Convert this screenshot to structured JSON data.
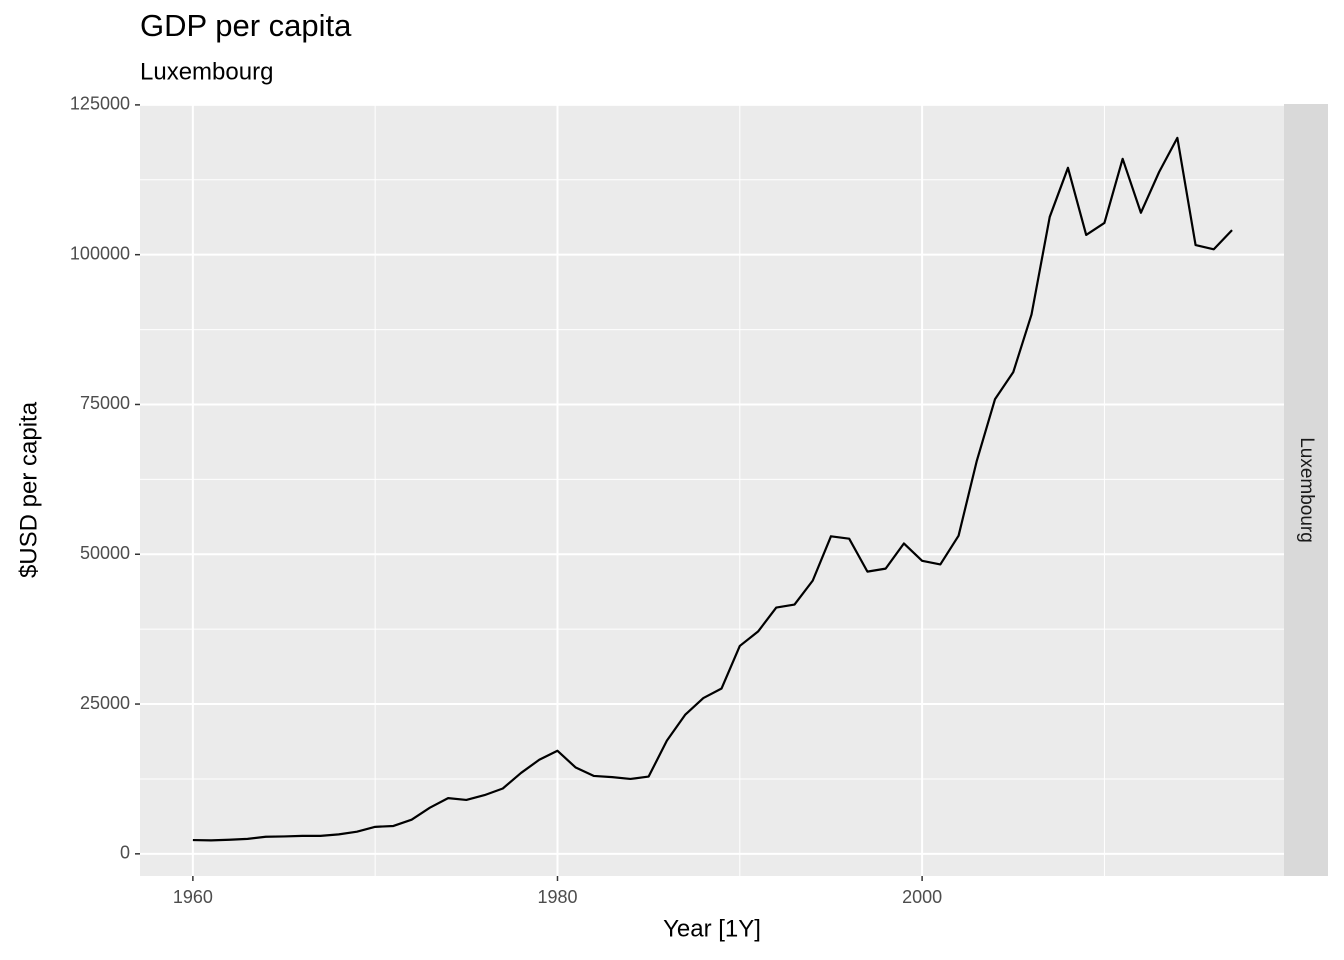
{
  "chart_data": {
    "type": "line",
    "title": "GDP per capita",
    "subtitle": "Luxembourg",
    "xlabel": "Year [1Y]",
    "ylabel": "$USD per capita",
    "facet": "Luxembourg",
    "x": [
      1960,
      1961,
      1962,
      1963,
      1964,
      1965,
      1966,
      1967,
      1968,
      1969,
      1970,
      1971,
      1972,
      1973,
      1974,
      1975,
      1976,
      1977,
      1978,
      1979,
      1980,
      1981,
      1982,
      1983,
      1984,
      1985,
      1986,
      1987,
      1988,
      1989,
      1990,
      1991,
      1992,
      1993,
      1994,
      1995,
      1996,
      1997,
      1998,
      1999,
      2000,
      2001,
      2002,
      2003,
      2004,
      2005,
      2006,
      2007,
      2008,
      2009,
      2010,
      2011,
      2012,
      2013,
      2014,
      2015,
      2016,
      2017
    ],
    "values": [
      2300,
      2250,
      2350,
      2500,
      2850,
      2900,
      3000,
      3000,
      3250,
      3700,
      4500,
      4650,
      5700,
      7700,
      9300,
      9000,
      9800,
      10900,
      13500,
      15700,
      17200,
      14400,
      13000,
      12800,
      12500,
      12900,
      18900,
      23200,
      26000,
      27600,
      34700,
      37100,
      41100,
      41600,
      45600,
      53000,
      52600,
      47100,
      47600,
      51800,
      48900,
      48300,
      53100,
      65600,
      75900,
      80400,
      90000,
      106300,
      114500,
      103300,
      105300,
      116000,
      107000,
      113800,
      119500,
      101600,
      100900,
      104100
    ],
    "color": "#000000",
    "xlim": [
      1957.1,
      2019.85
    ],
    "xticks": [
      1960,
      1980,
      2000
    ],
    "xminor": [
      1970,
      1990,
      2010
    ],
    "ylim": [
      -3700,
      125150
    ],
    "yticks": [
      0,
      25000,
      50000,
      75000,
      100000,
      125000
    ],
    "yminor": [
      12500,
      37500,
      62500,
      87500,
      112500
    ],
    "grid": true
  }
}
